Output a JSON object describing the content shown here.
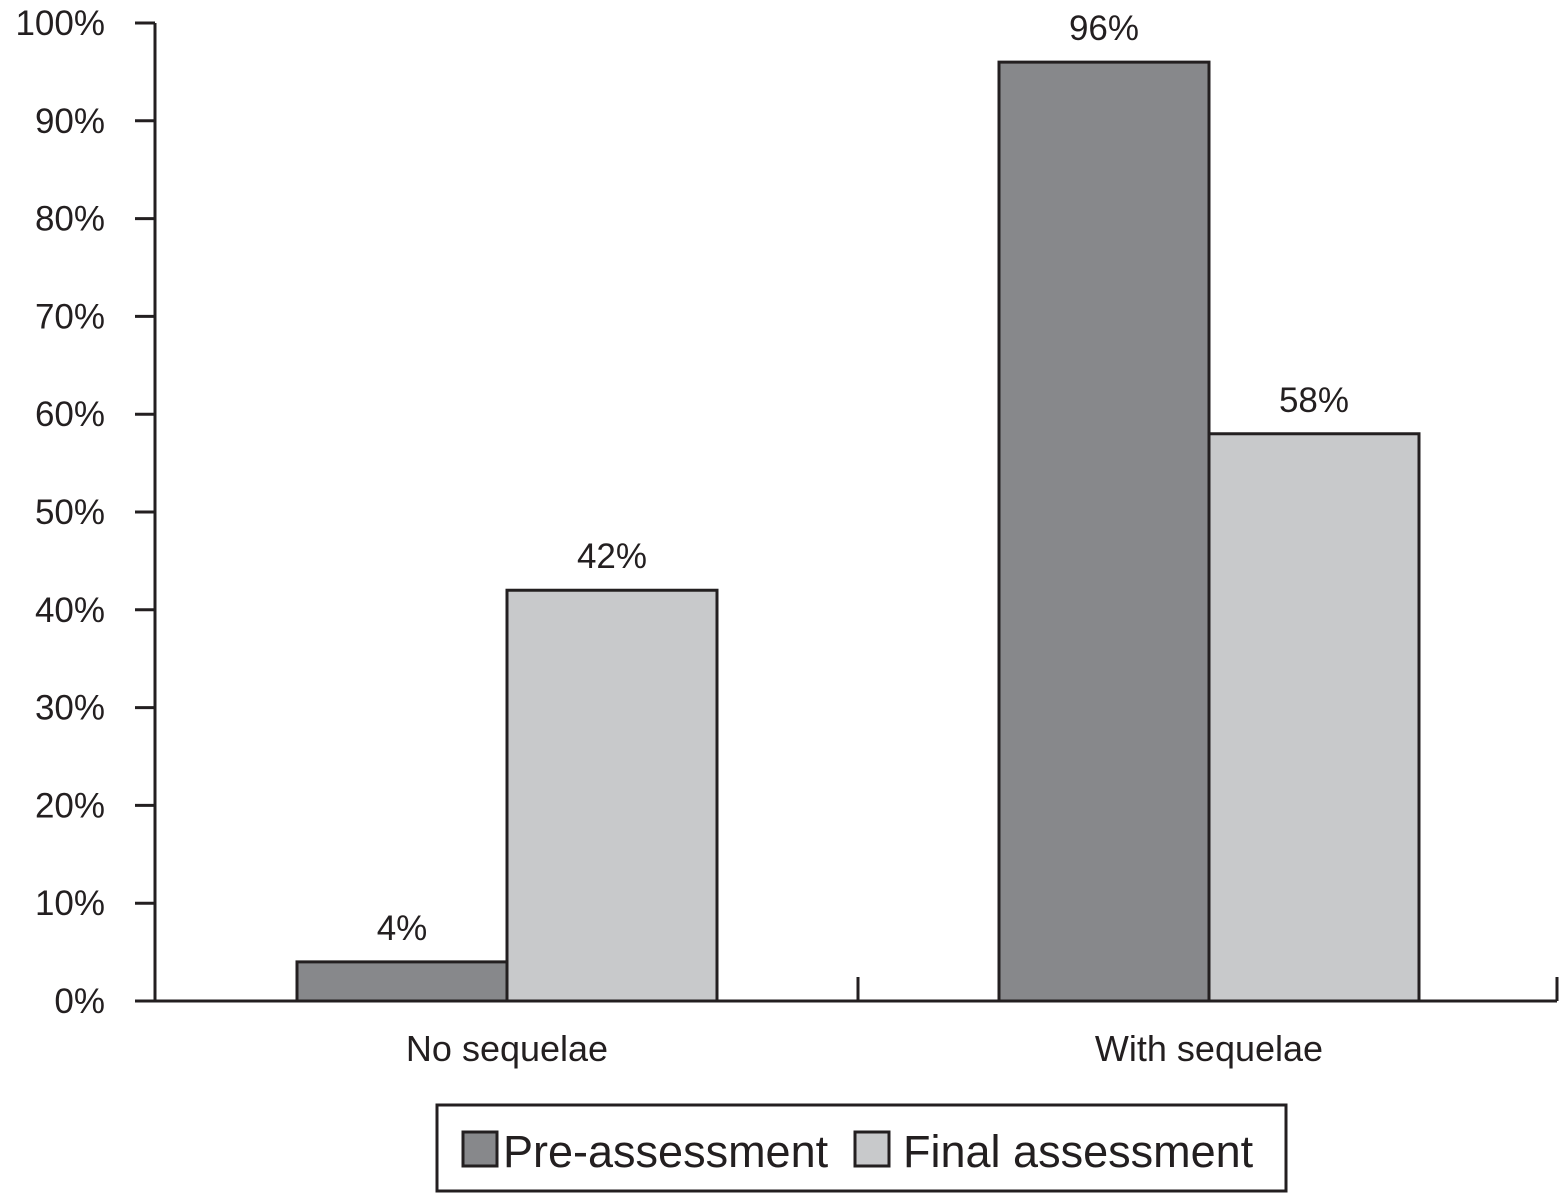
{
  "chart_data": {
    "type": "bar",
    "categories": [
      "No sequelae",
      "With sequelae"
    ],
    "series": [
      {
        "name": "Pre-assessment",
        "values": [
          4,
          96
        ],
        "color": "#87888b"
      },
      {
        "name": "Final assessment",
        "values": [
          42,
          58
        ],
        "color": "#c8c9cb"
      }
    ],
    "data_labels": [
      [
        "4%",
        "96%"
      ],
      [
        "42%",
        "58%"
      ]
    ],
    "y_ticks": [
      "0%",
      "10%",
      "20%",
      "30%",
      "40%",
      "50%",
      "60%",
      "70%",
      "80%",
      "90%",
      "100%"
    ],
    "ylim": [
      0,
      100
    ],
    "title": "",
    "xlabel": "",
    "ylabel": "",
    "grid": false,
    "legend_position": "bottom",
    "axis_color": "#231f20"
  }
}
